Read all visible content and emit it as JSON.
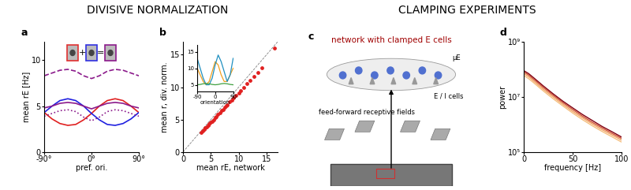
{
  "headings": [
    "DIVISIVE NORMALIZATION",
    "CLAMPING EXPERIMENTS"
  ],
  "chart_data": [
    {
      "type": "line",
      "title": "a",
      "xlabel": "pref. ori.",
      "ylabel": "mean rE [Hz]",
      "xlim": [
        -90,
        90
      ],
      "xticks": [
        {
          "value": -90,
          "label": "-90°"
        },
        {
          "value": 0,
          "label": "0°"
        },
        {
          "value": 90,
          "label": "90°"
        }
      ],
      "ylim": [
        0,
        12
      ],
      "yticks": [
        0,
        5,
        10
      ],
      "icons": {
        "operators": [
          "+",
          "="
        ],
        "colors": [
          "#e03030",
          "#3030e0",
          "#8b1a8b"
        ]
      },
      "x": [
        -90,
        -75,
        -60,
        -45,
        -30,
        -15,
        0,
        15,
        30,
        45,
        60,
        75,
        90
      ],
      "series": [
        {
          "color": "#e02020",
          "line_style": "solid",
          "values": [
            4.3,
            3.6,
            3.1,
            2.9,
            3.0,
            3.5,
            4.2,
            5.0,
            5.6,
            5.8,
            5.6,
            5.0,
            4.3
          ]
        },
        {
          "color": "#2020e0",
          "line_style": "solid",
          "values": [
            4.3,
            5.0,
            5.6,
            5.8,
            5.6,
            5.0,
            4.2,
            3.5,
            3.0,
            2.9,
            3.1,
            3.6,
            4.3
          ]
        },
        {
          "color": "#8b1a8b",
          "line_style": "solid",
          "values": [
            4.8,
            5.0,
            5.3,
            5.4,
            5.3,
            5.0,
            4.7,
            5.0,
            5.3,
            5.4,
            5.3,
            5.0,
            4.8
          ]
        },
        {
          "color": "#8b1a8b",
          "line_style": "dotted",
          "values": [
            3.9,
            4.2,
            4.5,
            4.6,
            4.4,
            3.8,
            3.4,
            3.8,
            4.4,
            4.6,
            4.5,
            4.2,
            3.9
          ]
        },
        {
          "color": "#8b1a8b",
          "line_style": "dashed",
          "values": [
            8.3,
            8.6,
            8.9,
            9.0,
            8.8,
            8.3,
            8.0,
            8.3,
            8.8,
            9.0,
            8.9,
            8.6,
            8.3
          ]
        }
      ]
    },
    {
      "type": "scatter",
      "title": "b",
      "xlabel": "mean rE, network",
      "ylabel": "mean r, div. norm.",
      "xlim": [
        0,
        17
      ],
      "xticks": [
        0,
        5,
        10,
        15
      ],
      "ylim": [
        0,
        17
      ],
      "yticks": [
        0,
        5,
        10,
        15
      ],
      "color": "#e02020",
      "x": [
        3.2,
        3.5,
        3.8,
        4.0,
        4.2,
        4.5,
        4.7,
        5.0,
        5.2,
        5.5,
        5.8,
        6.0,
        6.3,
        6.6,
        7.0,
        7.2,
        7.5,
        7.8,
        8.0,
        8.4,
        8.8,
        9.1,
        9.5,
        10.0,
        10.4,
        10.9,
        11.5,
        12.0,
        12.8,
        13.5,
        14.2,
        16.5
      ],
      "values": [
        3.0,
        3.3,
        3.5,
        3.7,
        3.9,
        4.1,
        4.3,
        4.6,
        4.7,
        5.0,
        5.3,
        5.5,
        5.8,
        6.0,
        6.4,
        6.6,
        6.9,
        7.1,
        7.3,
        7.7,
        8.0,
        8.4,
        8.7,
        9.1,
        9.5,
        10.0,
        10.5,
        11.0,
        11.7,
        12.3,
        13.0,
        16.0
      ],
      "inset": {
        "type": "line",
        "xlabel": "orientation",
        "xlim": [
          -90,
          90
        ],
        "xticks": [
          -90,
          0,
          90
        ],
        "ylim": [
          3,
          17
        ],
        "yticks": [
          5,
          10,
          15
        ],
        "x": [
          -90,
          -75,
          -60,
          -45,
          -30,
          -15,
          0,
          15,
          30,
          45,
          60,
          75,
          90
        ],
        "series": [
          {
            "color": "#f0a020",
            "values": [
              10,
              8,
              6,
              5,
              6,
              9,
              12,
              11,
              8,
              6,
              6,
              8,
              10
            ]
          },
          {
            "color": "#2090c0",
            "values": [
              13,
              10,
              7,
              5,
              5,
              7,
              11,
              14,
              12,
              9,
              6,
              8,
              13
            ]
          },
          {
            "color": "#40a040",
            "values": [
              5.0,
              5.1,
              5.3,
              5.4,
              5.3,
              5.1,
              5.0,
              5.1,
              5.3,
              5.4,
              5.3,
              5.1,
              5.0
            ]
          }
        ]
      }
    },
    {
      "type": "line",
      "title": "d",
      "xlabel": "frequency [Hz]",
      "ylabel": "power",
      "log": "y",
      "xlim": [
        0,
        100
      ],
      "xticks": [
        0,
        50,
        100
      ],
      "ylim": [
        100000,
        1000000000
      ],
      "yticks": [
        {
          "value": 100000,
          "label": "10⁵"
        },
        {
          "value": 10000000,
          "label": "10⁷"
        },
        {
          "value": 1000000000,
          "label": "10⁹"
        }
      ],
      "x": [
        0,
        5,
        10,
        20,
        30,
        40,
        50,
        60,
        70,
        80,
        90,
        100
      ],
      "series": [
        {
          "color": "#f5c080",
          "values": [
            60000000,
            46000000,
            33000000,
            16500000,
            8600000,
            4700000,
            2600000,
            1500000,
            900000,
            560000,
            360000,
            230000
          ]
        },
        {
          "color": "#f0a060",
          "values": [
            70000000,
            54000000,
            38000000,
            19000000,
            10000000,
            5400000,
            3000000,
            1750000,
            1050000,
            650000,
            420000,
            270000
          ]
        },
        {
          "color": "#d05030",
          "values": [
            80000000,
            62000000,
            44000000,
            22000000,
            11500000,
            6200000,
            3500000,
            2000000,
            1200000,
            750000,
            480000,
            310000
          ]
        },
        {
          "color": "#800010",
          "values": [
            90000000,
            70000000,
            50000000,
            25000000,
            13000000,
            7000000,
            4000000,
            2300000,
            1400000,
            850000,
            550000,
            350000
          ]
        }
      ]
    }
  ],
  "diagram": {
    "title": "c",
    "label": "network with clamped E cells",
    "label_color": "#a00000",
    "mu": "μE",
    "cells": "E / I cells",
    "receptive": "feed-forward receptive fields"
  }
}
